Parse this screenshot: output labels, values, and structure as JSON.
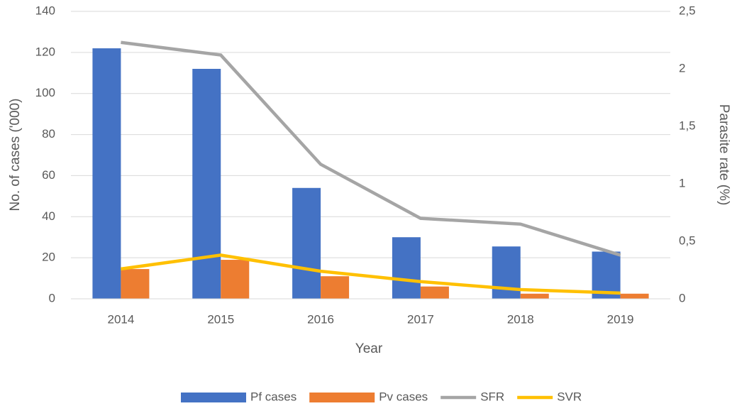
{
  "chart_data": {
    "type": "bar-line",
    "x_label": "Year",
    "y_label": "No. of cases ('000)",
    "y2_label": "Parasite rate (%)",
    "categories": [
      "2014",
      "2015",
      "2016",
      "2017",
      "2018",
      "2019"
    ],
    "series": [
      {
        "name": "Pf cases",
        "type": "bar",
        "color": "#4472c4",
        "values": [
          122,
          112,
          54,
          30,
          25.5,
          23
        ]
      },
      {
        "name": "Pv cases",
        "type": "bar",
        "color": "#ed7d31",
        "values": [
          14.5,
          19,
          11,
          6,
          2.5,
          2.5
        ]
      },
      {
        "name": "SFR",
        "type": "line",
        "axis": "y2",
        "color": "#a5a5a5",
        "values": [
          2.23,
          2.12,
          1.17,
          0.7,
          0.65,
          0.38
        ]
      },
      {
        "name": "SVR",
        "type": "line",
        "axis": "y2",
        "color": "#ffc000",
        "values": [
          0.26,
          0.38,
          0.24,
          0.15,
          0.08,
          0.05
        ]
      }
    ],
    "ylim": [
      0,
      140
    ],
    "yticks": [
      0,
      20,
      40,
      60,
      80,
      100,
      120,
      140
    ],
    "y2lim": [
      0,
      2.5
    ],
    "y2ticks": [
      0,
      {
        "value": 0.5,
        "label": "0,5"
      },
      1,
      {
        "value": 1.5,
        "label": "1,5"
      },
      2,
      {
        "value": 2.5,
        "label": "2,5"
      }
    ],
    "grid": true,
    "legend": "bottom"
  }
}
